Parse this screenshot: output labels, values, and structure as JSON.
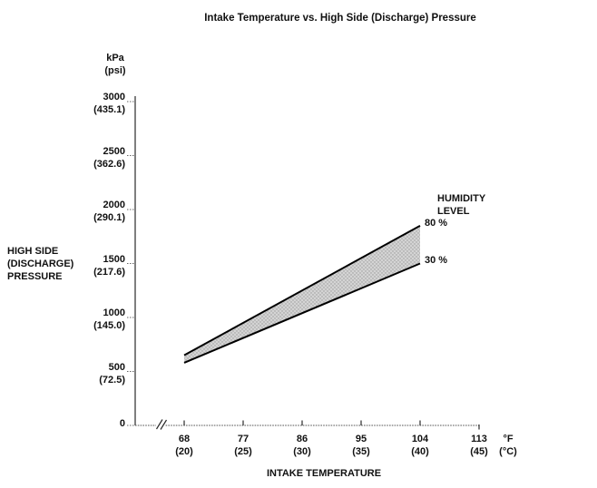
{
  "chart_data": {
    "type": "area",
    "title": "Intake Temperature vs. High Side (Discharge) Pressure",
    "x_axis": {
      "label": "INTAKE TEMPERATURE",
      "unit_primary": "°F",
      "unit_secondary": "(°C)",
      "range_f": [
        68,
        113
      ],
      "axis_break_before_first_tick": true,
      "ticks": [
        {
          "f": 68,
          "label": "68",
          "c": "(20)"
        },
        {
          "f": 77,
          "label": "77",
          "c": "(25)"
        },
        {
          "f": 86,
          "label": "86",
          "c": "(30)"
        },
        {
          "f": 95,
          "label": "95",
          "c": "(35)"
        },
        {
          "f": 104,
          "label": "104",
          "c": "(40)"
        },
        {
          "f": 113,
          "label": "113",
          "c": "(45)"
        }
      ]
    },
    "y_axis": {
      "label_lines": [
        "HIGH SIDE",
        "(DISCHARGE)",
        "PRESSURE"
      ],
      "unit_primary": "kPa",
      "unit_secondary": "(psi)",
      "range_kpa": [
        0,
        3000
      ],
      "ticks": [
        {
          "kpa": 3000,
          "label": "3000",
          "psi": "(435.1)"
        },
        {
          "kpa": 2500,
          "label": "2500",
          "psi": "(362.6)"
        },
        {
          "kpa": 2000,
          "label": "2000",
          "psi": "(290.1)"
        },
        {
          "kpa": 1500,
          "label": "1500",
          "psi": "(217.6)"
        },
        {
          "kpa": 1000,
          "label": "1000",
          "psi": "(145.0)"
        },
        {
          "kpa": 500,
          "label": "500",
          "psi": "(72.5)"
        },
        {
          "kpa": 0,
          "label": "0",
          "psi": null
        }
      ]
    },
    "legend": {
      "title_lines": [
        "HUMIDITY",
        "LEVEL"
      ],
      "entries": [
        "80 %",
        "30 %"
      ],
      "position": "right-of-band-end"
    },
    "series": [
      {
        "name": "80 %",
        "points": [
          [
            68,
            650
          ],
          [
            104,
            1850
          ]
        ]
      },
      {
        "name": "30 %",
        "points": [
          [
            68,
            580
          ],
          [
            104,
            1500
          ]
        ]
      }
    ],
    "band": {
      "between": [
        "80 %",
        "30 %"
      ],
      "style": "gray-stipple"
    },
    "grid": "off",
    "colors": {
      "background": "#ffffff",
      "text": "#111111",
      "line": "#000000",
      "axis": "#2a2a2a",
      "band_base": "#d4d4d4",
      "band_dot": "#989898"
    }
  }
}
